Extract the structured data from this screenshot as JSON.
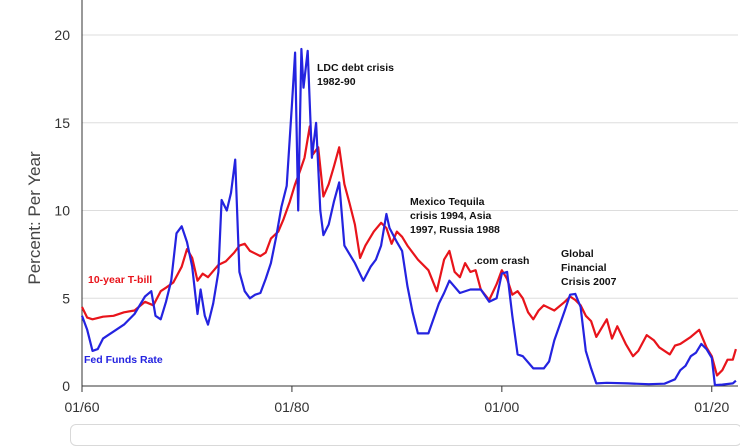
{
  "chart_data": {
    "type": "line",
    "title": "",
    "xlabel": "",
    "ylabel": "Percent: Per Year",
    "xlim": [
      1960,
      2022.5
    ],
    "ylim": [
      0,
      20
    ],
    "yticks": [
      0,
      5,
      10,
      15,
      20
    ],
    "xticks": [
      {
        "value": 1960,
        "label": "01/60"
      },
      {
        "value": 1980,
        "label": "01/80"
      },
      {
        "value": 2000,
        "label": "01/00"
      },
      {
        "value": 2020,
        "label": "01/20"
      }
    ],
    "grid": {
      "horizontal": true,
      "vertical": false
    },
    "series": [
      {
        "name": "10-year T-bill",
        "color": "#e8141b",
        "x": [
          1960,
          1960.5,
          1961,
          1962,
          1963,
          1964,
          1965,
          1966,
          1966.8,
          1967.5,
          1968,
          1968.7,
          1969.5,
          1970,
          1970.5,
          1971,
          1971.5,
          1972,
          1973,
          1973.7,
          1974.5,
          1975,
          1975.5,
          1976,
          1977,
          1977.5,
          1978,
          1978.7,
          1979.2,
          1979.8,
          1980.3,
          1980.8,
          1981.2,
          1981.7,
          1982,
          1982.5,
          1983,
          1983.5,
          1984,
          1984.5,
          1985,
          1985.5,
          1986,
          1986.5,
          1987,
          1987.8,
          1988.5,
          1989,
          1989.5,
          1990,
          1990.5,
          1991,
          1992,
          1993,
          1993.8,
          1994.5,
          1995,
          1995.5,
          1996,
          1996.5,
          1997,
          1997.5,
          1998,
          1998.8,
          1999.5,
          2000,
          2000.5,
          2001,
          2001.5,
          2002,
          2002.5,
          2003,
          2003.5,
          2004,
          2005,
          2006,
          2006.5,
          2007,
          2007.5,
          2008,
          2008.5,
          2009,
          2010,
          2010.5,
          2011,
          2011.8,
          2012.5,
          2013,
          2013.8,
          2014.5,
          2015,
          2016,
          2016.5,
          2017,
          2018,
          2018.8,
          2019.5,
          2020,
          2020.5,
          2021,
          2021.5,
          2022,
          2022.3
        ],
        "values": [
          4.5,
          3.9,
          3.8,
          3.95,
          4.0,
          4.2,
          4.3,
          4.8,
          4.6,
          5.4,
          5.6,
          5.9,
          6.8,
          7.8,
          7.3,
          6.0,
          6.4,
          6.2,
          6.9,
          7.1,
          7.6,
          8.0,
          8.1,
          7.7,
          7.4,
          7.6,
          8.4,
          8.8,
          9.5,
          10.5,
          11.5,
          12.3,
          13.0,
          14.8,
          13.2,
          13.6,
          10.8,
          11.5,
          12.5,
          13.6,
          11.5,
          10.4,
          9.2,
          7.3,
          8.0,
          8.8,
          9.3,
          9.0,
          8.1,
          8.8,
          8.5,
          8.0,
          7.2,
          6.6,
          5.4,
          7.2,
          7.7,
          6.5,
          6.2,
          7.0,
          6.5,
          6.6,
          5.5,
          4.9,
          5.8,
          6.6,
          6.1,
          5.2,
          5.4,
          5.0,
          4.2,
          3.8,
          4.3,
          4.6,
          4.3,
          4.8,
          5.1,
          4.9,
          4.6,
          4.0,
          3.7,
          2.8,
          3.8,
          2.7,
          3.4,
          2.4,
          1.7,
          2.0,
          2.9,
          2.6,
          2.2,
          1.8,
          2.3,
          2.4,
          2.8,
          3.2,
          2.2,
          1.7,
          0.6,
          0.9,
          1.5,
          1.5,
          2.1
        ],
        "label_color": "#e8141b"
      },
      {
        "name": "Fed Funds Rate",
        "color": "#2423e0",
        "x": [
          1960,
          1960.5,
          1961,
          1961.5,
          1962,
          1962.5,
          1963,
          1964,
          1965,
          1966,
          1966.6,
          1967,
          1967.5,
          1968,
          1968.5,
          1969,
          1969.5,
          1970,
          1970.5,
          1971,
          1971.3,
          1971.7,
          1972,
          1972.5,
          1973,
          1973.3,
          1973.8,
          1974.2,
          1974.6,
          1975,
          1975.5,
          1976,
          1976.5,
          1977,
          1977.5,
          1978,
          1978.5,
          1979,
          1979.5,
          1980,
          1980.3,
          1980.6,
          1980.9,
          1981.1,
          1981.5,
          1981.9,
          1982.3,
          1982.7,
          1983,
          1983.5,
          1984,
          1984.5,
          1985,
          1986,
          1986.8,
          1987.5,
          1988,
          1988.5,
          1989,
          1989.3,
          1990,
          1990.5,
          1991,
          1991.5,
          1992,
          1993,
          1994,
          1994.5,
          1995,
          1996,
          1997,
          1998,
          1998.8,
          1999.5,
          2000,
          2000.5,
          2001,
          2001.5,
          2002,
          2003,
          2004,
          2004.5,
          2005,
          2006,
          2006.5,
          2007,
          2007.5,
          2008,
          2008.5,
          2009,
          2010,
          2012,
          2014,
          2015.5,
          2016.5,
          2017,
          2017.5,
          2018,
          2018.5,
          2019,
          2019.5,
          2020,
          2020.3,
          2021,
          2022,
          2022.3
        ],
        "values": [
          4.0,
          3.2,
          2.0,
          2.1,
          2.7,
          2.9,
          3.1,
          3.5,
          4.1,
          5.1,
          5.4,
          4.0,
          3.8,
          4.8,
          6.0,
          8.7,
          9.1,
          8.2,
          6.8,
          4.1,
          5.5,
          4.0,
          3.5,
          4.7,
          6.5,
          10.6,
          10.0,
          11.0,
          12.9,
          6.5,
          5.4,
          5.0,
          5.2,
          5.3,
          6.1,
          7.0,
          8.5,
          10.2,
          11.4,
          16.0,
          19.0,
          10.0,
          19.2,
          17.0,
          19.1,
          13.0,
          15.0,
          10.0,
          8.6,
          9.2,
          10.5,
          11.6,
          8.0,
          7.0,
          6.0,
          6.8,
          7.2,
          8.0,
          9.8,
          9.0,
          8.2,
          7.7,
          5.7,
          4.2,
          3.0,
          3.0,
          4.7,
          5.3,
          6.0,
          5.3,
          5.5,
          5.5,
          4.8,
          5.0,
          6.4,
          6.5,
          4.0,
          1.8,
          1.7,
          1.0,
          1.0,
          1.4,
          2.6,
          4.3,
          5.2,
          5.25,
          4.5,
          2.0,
          1.0,
          0.15,
          0.18,
          0.15,
          0.1,
          0.13,
          0.38,
          0.9,
          1.15,
          1.7,
          1.9,
          2.4,
          2.1,
          1.6,
          0.05,
          0.08,
          0.15,
          0.3
        ],
        "label_color": "#2423e0"
      }
    ],
    "annotations": [
      {
        "lines": [
          "LDC debt crisis",
          "1982-90"
        ]
      },
      {
        "lines": [
          "Mexico Tequila",
          "crisis 1994, Asia",
          "1997, Russia 1988"
        ]
      },
      {
        "lines": [
          ".com crash"
        ]
      },
      {
        "lines": [
          "Global",
          "Financial",
          "Crisis 2007"
        ]
      }
    ],
    "legend_labels": [
      {
        "text": "10-year T-bill",
        "color": "#e8141b"
      },
      {
        "text": "Fed Funds Rate",
        "color": "#2423e0"
      }
    ]
  }
}
